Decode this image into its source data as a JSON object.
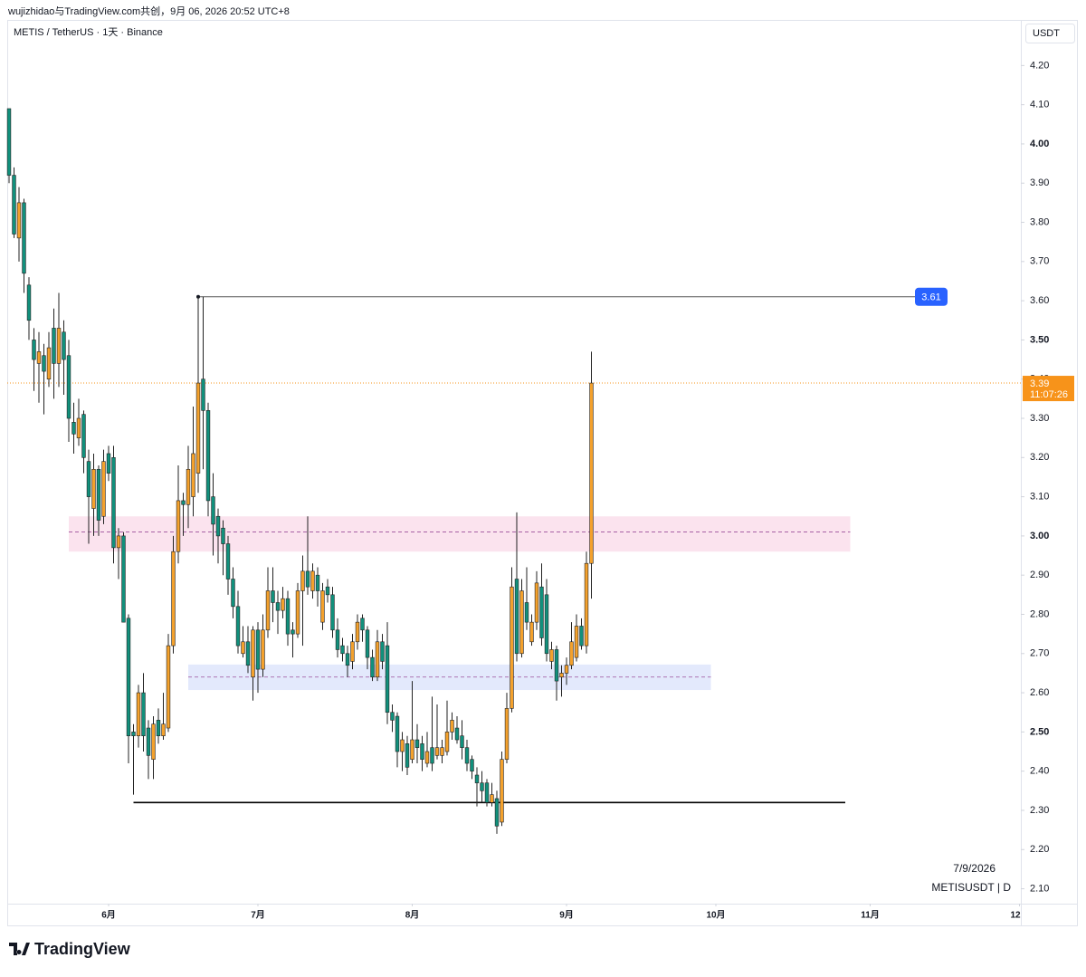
{
  "header": {
    "caption": "wujizhidao与TradingView.com共创，9月 06, 2026 20:52 UTC+8",
    "logo": "TradingView"
  },
  "chart_data": {
    "type": "candlestick",
    "title": "METIS / TetherUS · 1天 · Binance",
    "y_unit": "USDT",
    "date_stamp": "7/9/2026",
    "symbol_label": "METISUSDT | D",
    "up_color": "#f4a12c",
    "down_color": "#11907c",
    "x": [
      0,
      1,
      2,
      3,
      4,
      5,
      6,
      7,
      8,
      9,
      10,
      11,
      12,
      13,
      14,
      15,
      16,
      17,
      18,
      19,
      20,
      21,
      22,
      23,
      24,
      25,
      26,
      27,
      28,
      29,
      30,
      31,
      32,
      33,
      34,
      35,
      36,
      37,
      38,
      39,
      40,
      41,
      42,
      43,
      44,
      45,
      46,
      47,
      48,
      49,
      50,
      51,
      52,
      53,
      54,
      55,
      56,
      57,
      58,
      59,
      60,
      61,
      62,
      63,
      64,
      65,
      66,
      67,
      68,
      69,
      70,
      71,
      72,
      73,
      74,
      75,
      76,
      77,
      78,
      79,
      80,
      81,
      82,
      83,
      84,
      85,
      86,
      87,
      88,
      89,
      90,
      91,
      92,
      93,
      94,
      95,
      96,
      97,
      98,
      99,
      100,
      101,
      102,
      103,
      104,
      105,
      106,
      107,
      108,
      109,
      110,
      111,
      112,
      113,
      114,
      115,
      116,
      117
    ],
    "open": [
      4.09,
      3.92,
      3.76,
      3.85,
      3.64,
      3.5,
      3.44,
      3.46,
      3.4,
      3.53,
      3.44,
      3.52,
      3.46,
      3.29,
      3.25,
      3.31,
      3.19,
      3.07,
      3.17,
      3.05,
      3.21,
      3.2,
      2.97,
      3.0,
      2.79,
      2.5,
      2.49,
      2.6,
      2.51,
      2.43,
      2.53,
      2.49,
      2.51,
      2.72,
      2.96,
      3.09,
      3.08,
      3.1,
      3.16,
      3.4,
      3.32,
      3.1,
      3.05,
      3.02,
      2.98,
      2.89,
      2.82,
      2.7,
      2.73,
      2.64,
      2.76,
      2.66,
      2.76,
      2.86,
      2.83,
      2.81,
      2.84,
      2.76,
      2.75,
      2.86,
      2.91,
      2.86,
      2.9,
      2.78,
      2.87,
      2.85,
      2.76,
      2.72,
      2.7,
      2.68,
      2.73,
      2.79,
      2.76,
      2.69,
      2.64,
      2.73,
      2.72,
      2.55,
      2.54,
      2.45,
      2.47,
      2.43,
      2.48,
      2.47,
      2.42,
      2.46,
      2.44,
      2.44,
      2.45,
      2.5,
      2.51,
      2.49,
      2.46,
      2.43,
      2.39,
      2.37,
      2.37,
      2.32,
      2.33,
      2.27,
      2.43,
      2.56,
      2.89,
      2.7,
      2.83,
      2.73,
      2.78,
      2.87,
      2.85,
      2.68,
      2.71,
      2.64,
      2.65,
      2.67,
      2.69,
      2.77,
      2.72,
      2.93
    ],
    "high": [
      4.09,
      3.94,
      3.89,
      3.86,
      3.66,
      3.53,
      3.52,
      3.49,
      3.52,
      3.58,
      3.62,
      3.55,
      3.5,
      3.34,
      3.35,
      3.32,
      3.22,
      3.21,
      3.18,
      3.22,
      3.23,
      3.23,
      3.02,
      3.01,
      2.8,
      2.52,
      2.62,
      2.65,
      2.53,
      2.54,
      2.56,
      2.6,
      2.75,
      3.0,
      3.18,
      3.11,
      3.23,
      3.33,
      3.61,
      3.61,
      3.34,
      3.16,
      3.07,
      3.04,
      3.0,
      2.92,
      2.86,
      2.77,
      2.77,
      2.77,
      2.78,
      2.8,
      2.92,
      2.92,
      2.86,
      2.87,
      2.86,
      2.78,
      2.88,
      2.95,
      3.05,
      2.93,
      2.92,
      2.88,
      2.89,
      2.87,
      2.79,
      2.74,
      2.72,
      2.75,
      2.8,
      2.8,
      2.77,
      2.71,
      2.76,
      2.75,
      2.78,
      2.57,
      2.55,
      2.5,
      2.49,
      2.63,
      2.52,
      2.49,
      2.5,
      2.59,
      2.57,
      2.48,
      2.58,
      2.55,
      2.54,
      2.53,
      2.48,
      2.44,
      2.41,
      2.4,
      2.38,
      2.37,
      2.35,
      2.45,
      2.6,
      2.92,
      3.06,
      2.89,
      2.92,
      2.8,
      2.91,
      2.93,
      2.89,
      2.73,
      2.72,
      2.67,
      2.69,
      2.78,
      2.8,
      2.79,
      2.96,
      3.47
    ],
    "low": [
      3.9,
      3.76,
      3.7,
      3.62,
      3.5,
      3.37,
      3.34,
      3.31,
      3.38,
      3.35,
      3.38,
      3.36,
      3.24,
      3.21,
      3.23,
      3.16,
      2.98,
      3.0,
      3.0,
      3.03,
      3.14,
      2.93,
      2.89,
      2.78,
      2.42,
      2.34,
      2.46,
      2.45,
      2.38,
      2.38,
      2.47,
      2.48,
      2.5,
      2.7,
      2.93,
      3.0,
      3.02,
      3.05,
      3.11,
      3.17,
      3.05,
      2.95,
      2.93,
      2.9,
      2.85,
      2.79,
      2.7,
      2.69,
      2.65,
      2.58,
      2.6,
      2.64,
      2.74,
      2.78,
      2.75,
      2.79,
      2.72,
      2.69,
      2.74,
      2.72,
      2.85,
      2.84,
      2.82,
      2.76,
      2.83,
      2.74,
      2.69,
      2.68,
      2.64,
      2.66,
      2.71,
      2.73,
      2.66,
      2.63,
      2.63,
      2.66,
      2.52,
      2.5,
      2.41,
      2.4,
      2.39,
      2.42,
      2.42,
      2.4,
      2.41,
      2.4,
      2.43,
      2.42,
      2.44,
      2.48,
      2.47,
      2.43,
      2.4,
      2.38,
      2.31,
      2.32,
      2.31,
      2.31,
      2.24,
      2.26,
      2.42,
      2.55,
      2.68,
      2.69,
      2.76,
      2.72,
      2.76,
      2.72,
      2.68,
      2.66,
      2.58,
      2.59,
      2.62,
      2.66,
      2.68,
      2.71,
      2.7,
      2.84
    ],
    "close": [
      3.92,
      3.77,
      3.85,
      3.67,
      3.55,
      3.45,
      3.47,
      3.42,
      3.48,
      3.44,
      3.53,
      3.45,
      3.3,
      3.26,
      3.3,
      3.2,
      3.1,
      3.17,
      3.04,
      3.19,
      3.16,
      2.97,
      3.0,
      2.78,
      2.49,
      2.49,
      2.6,
      2.49,
      2.44,
      2.52,
      2.49,
      2.52,
      2.72,
      2.96,
      3.09,
      3.08,
      3.17,
      3.21,
      3.39,
      3.32,
      3.09,
      3.03,
      3.0,
      2.98,
      2.89,
      2.82,
      2.72,
      2.73,
      2.67,
      2.76,
      2.66,
      2.76,
      2.86,
      2.83,
      2.81,
      2.84,
      2.75,
      2.75,
      2.86,
      2.91,
      2.87,
      2.91,
      2.86,
      2.86,
      2.85,
      2.76,
      2.71,
      2.7,
      2.67,
      2.73,
      2.78,
      2.76,
      2.69,
      2.64,
      2.73,
      2.68,
      2.55,
      2.53,
      2.45,
      2.48,
      2.41,
      2.48,
      2.46,
      2.43,
      2.45,
      2.42,
      2.46,
      2.46,
      2.5,
      2.53,
      2.48,
      2.46,
      2.42,
      2.4,
      2.37,
      2.35,
      2.32,
      2.34,
      2.26,
      2.43,
      2.56,
      2.87,
      2.7,
      2.86,
      2.78,
      2.78,
      2.88,
      2.74,
      2.7,
      2.71,
      2.63,
      2.65,
      2.67,
      2.73,
      2.77,
      2.72,
      2.93,
      3.39
    ],
    "xlim": [
      0,
      203
    ],
    "xticks": [
      {
        "value": 20,
        "label": "6月"
      },
      {
        "value": 50,
        "label": "7月"
      },
      {
        "value": 81,
        "label": "8月"
      },
      {
        "value": 112,
        "label": "9月"
      },
      {
        "value": 142,
        "label": "10月"
      },
      {
        "value": 173,
        "label": "11月"
      },
      {
        "value": 203,
        "label": "12"
      }
    ],
    "ylim": [
      2.062,
      4.314
    ],
    "yticks": [
      {
        "value": 2.1,
        "label": "2.10"
      },
      {
        "value": 2.2,
        "label": "2.20"
      },
      {
        "value": 2.3,
        "label": "2.30"
      },
      {
        "value": 2.4,
        "label": "2.40"
      },
      {
        "value": 2.5,
        "label": "2.50"
      },
      {
        "value": 2.6,
        "label": "2.60"
      },
      {
        "value": 2.7,
        "label": "2.70"
      },
      {
        "value": 2.8,
        "label": "2.80"
      },
      {
        "value": 2.9,
        "label": "2.90"
      },
      {
        "value": 3.0,
        "label": "3.00"
      },
      {
        "value": 3.1,
        "label": "3.10"
      },
      {
        "value": 3.2,
        "label": "3.20"
      },
      {
        "value": 3.3,
        "label": "3.30"
      },
      {
        "value": 3.4,
        "label": "3.40"
      },
      {
        "value": 3.5,
        "label": "3.50"
      },
      {
        "value": 3.6,
        "label": "3.60"
      },
      {
        "value": 3.7,
        "label": "3.70"
      },
      {
        "value": 3.8,
        "label": "3.80"
      },
      {
        "value": 3.9,
        "label": "3.90"
      },
      {
        "value": 4.0,
        "label": "4.00"
      },
      {
        "value": 4.1,
        "label": "4.10"
      },
      {
        "value": 4.2,
        "label": "4.20"
      }
    ],
    "zones": [
      {
        "low": 2.96,
        "high": 3.05,
        "mid": 3.01,
        "x_start": 12,
        "x_end": 169,
        "color": "#fbe3ee",
        "line_color": "#9c4f9a"
      },
      {
        "low": 2.607,
        "high": 2.672,
        "mid": 2.64,
        "x_start": 36,
        "x_end": 141,
        "color": "#e3e9fc",
        "line_color": "#9c4f9a"
      }
    ],
    "horizontal_lines": [
      {
        "value": 2.32,
        "x_start": 25,
        "x_end": 168,
        "color": "#000000"
      }
    ],
    "price_level": {
      "value": 3.61,
      "x_start": 38,
      "x_end": 182,
      "color": "#2962ff"
    },
    "last_price": {
      "value": 3.39,
      "countdown": "11:07:26",
      "color": "#f7931a"
    }
  }
}
